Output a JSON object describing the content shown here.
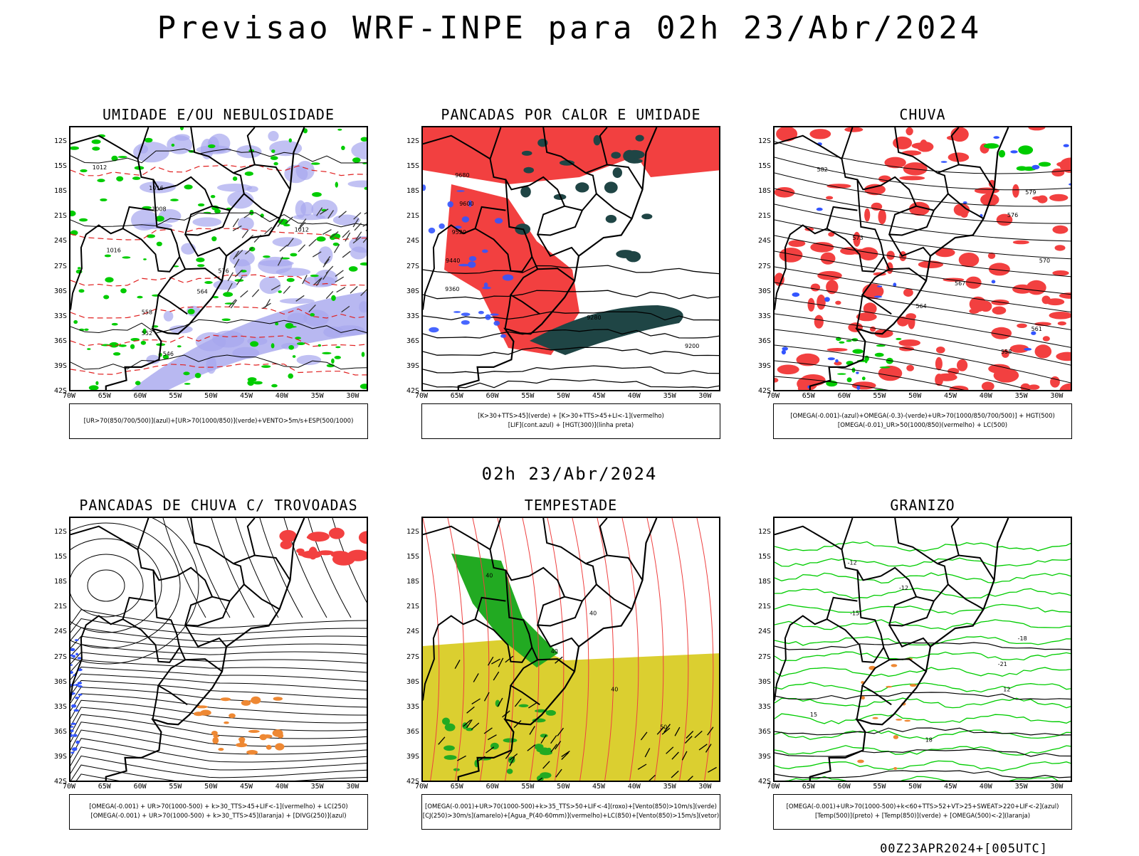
{
  "header": {
    "main_title": "Previsao WRF-INPE  para 02h 23/Abr/2024",
    "mid_title": "02h 23/Abr/2024",
    "footer": "00Z23APR2024+[005UTC]"
  },
  "axes": {
    "lat_labels": [
      "12S",
      "15S",
      "18S",
      "21S",
      "24S",
      "27S",
      "30S",
      "33S",
      "36S",
      "39S",
      "42S"
    ],
    "lon_labels": [
      "70W",
      "65W",
      "60W",
      "55W",
      "50W",
      "45W",
      "40W",
      "35W",
      "30W"
    ]
  },
  "colors": {
    "moist_blue": "#a6a6ee",
    "green": "#00cc00",
    "red": "#f24040",
    "dark_teal": "#1f4545",
    "blue": "#3355ff",
    "orange": "#ee8833",
    "yellow": "#dbcf30"
  },
  "panels": [
    {
      "title": "UMIDADE E/OU NEBULOSIDADE",
      "legend": [
        "[UR>70(850/700/500)](azul)+[UR>70(1000/850)](verde)+VENTO>5m/s+ESP(500/1000)"
      ],
      "contour_labels": [
        "1012",
        "1016",
        "1008",
        "1012",
        "1016",
        "576",
        "564",
        "558",
        "552",
        "546"
      ]
    },
    {
      "title": "PANCADAS POR CALOR E UMIDADE",
      "legend": [
        "[K>30+TTS>45](verde) + [K>30+TTS>45+LI<-1](vermelho)",
        "[LIF](cont.azul) + [HGT(300)](linha preta)"
      ],
      "contour_labels": [
        "9680",
        "9600",
        "9520",
        "9440",
        "9360",
        "9280",
        "9200"
      ]
    },
    {
      "title": "CHUVA",
      "legend": [
        "[OMEGA(-0.001)-(azul)+OMEGA(-0.3)-(verde)+UR>70(1000/850/700/500)] + HGT(500)",
        "[OMEGA(-0.01)_UR>50(1000/850)(vermelho) + LC(500)"
      ],
      "contour_labels": [
        "582",
        "579",
        "576",
        "573",
        "570",
        "567",
        "564",
        "561",
        "558"
      ]
    },
    {
      "title": "PANCADAS DE CHUVA C/ TROVOADAS",
      "legend": [
        "[OMEGA(-0.001) + UR>70(1000-500) + k>30_TTS>45+LIF<-1](vermelho) + LC(250)",
        "[OMEGA(-0.001) + UR>70(1000-500) + k>30_TTS>45](laranja) + [DIVG(250)](azul)"
      ],
      "contour_labels": []
    },
    {
      "title": "TEMPESTADE",
      "legend": [
        "[OMEGA(-0.001)+UR>70(1000-500)+k>35_TTS>50+LIF<-4](roxo)+[Vento(850)>10m/s](verde)",
        "[CJ(250)>30m/s](amarelo)+[Agua_P(40-60mm)](vermelho)+LC(850)+[Vento(850)>15m/s](vetor)"
      ],
      "contour_labels": [
        "40",
        "40",
        "40",
        "40",
        "50"
      ]
    },
    {
      "title": "GRANIZO",
      "legend": [
        "[OMEGA(-0.001)+UR>70(1000-500)+k<60+TTS>52+VT>25+SWEAT>220+LIF<-2](azul)",
        "[Temp(500)](preto) + [Temp(850)](verde) + [OMEGA(500)<-2](laranja)"
      ],
      "contour_labels": [
        "-12",
        "-12",
        "-15",
        "-18",
        "-21",
        "12",
        "15",
        "18"
      ]
    }
  ]
}
